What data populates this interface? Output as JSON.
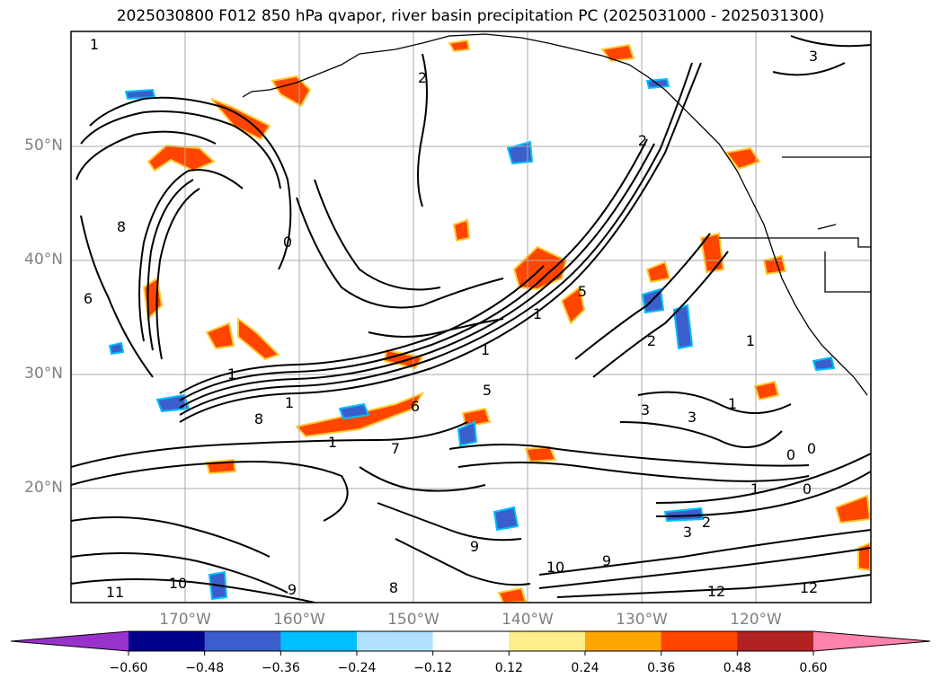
{
  "title": "2025030800 F012 850 hPa qvapor, river basin precipitation PC (2025031000 - 2025031300)",
  "map": {
    "lat_labels": [
      "50°N",
      "40°N",
      "30°N",
      "20°N"
    ],
    "lon_labels": [
      "170°W",
      "160°W",
      "150°W",
      "140°W",
      "130°W",
      "120°W"
    ],
    "contour_labels": [
      "1",
      "1",
      "2",
      "2",
      "3",
      "2",
      "1",
      "1",
      "8",
      "6",
      "0",
      "1",
      "1",
      "5",
      "5",
      "8",
      "6",
      "1",
      "3",
      "3",
      "1",
      "0",
      "0",
      "1",
      "0",
      "2",
      "3",
      "7",
      "9",
      "10",
      "11",
      "9",
      "9",
      "10",
      "12",
      "12",
      "8"
    ],
    "gridline_color": "#aaaaaa",
    "grid": true
  },
  "colorbar": {
    "colors": [
      "#9932cc",
      "#00008b",
      "#3a5fcd",
      "#00bfff",
      "#b0e2ff",
      "#ffffff",
      "#ffec8b",
      "#ffa500",
      "#ff4500",
      "#b22222",
      "#ff82ab"
    ],
    "ticks": [
      "−0.60",
      "−0.48",
      "−0.36",
      "−0.24",
      "−0.12",
      "0.12",
      "0.24",
      "0.36",
      "0.48",
      "0.60"
    ],
    "extend": "both"
  }
}
